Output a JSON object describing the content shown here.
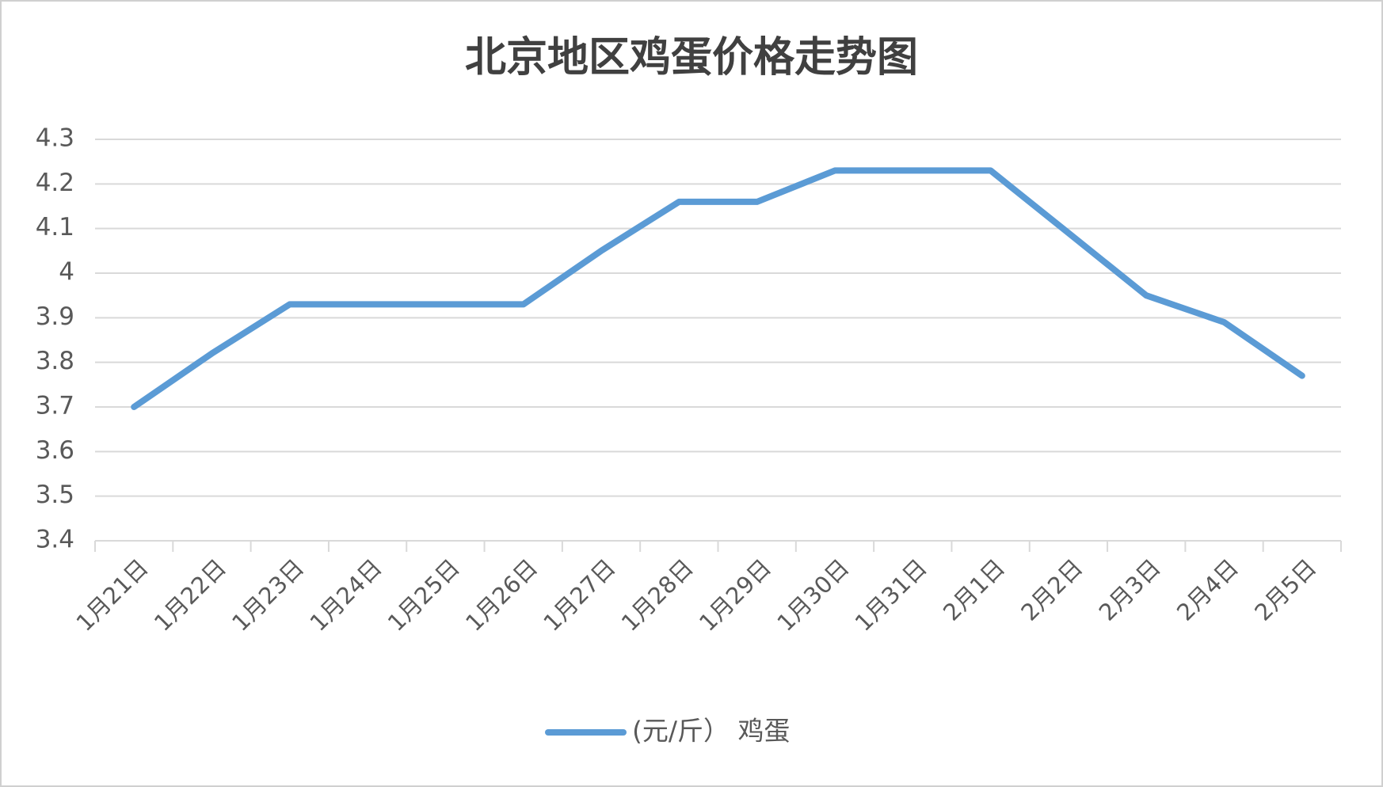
{
  "chart_data": {
    "type": "line",
    "title": "北京地区鸡蛋价格走势图",
    "categories": [
      "1月21日",
      "1月22日",
      "1月23日",
      "1月24日",
      "1月25日",
      "1月26日",
      "1月27日",
      "1月28日",
      "1月29日",
      "1月30日",
      "1月31日",
      "2月1日",
      "2月2日",
      "2月3日",
      "2月4日",
      "2月5日"
    ],
    "series": [
      {
        "name": "(元/斤） 鸡蛋",
        "color": "#5b9bd5",
        "values": [
          3.7,
          3.82,
          3.93,
          3.93,
          3.93,
          3.93,
          4.05,
          4.16,
          4.16,
          4.23,
          4.23,
          4.23,
          4.09,
          3.95,
          3.89,
          3.77
        ]
      }
    ],
    "ylim": [
      3.4,
      4.3
    ],
    "yticks": [
      3.4,
      3.5,
      3.6,
      3.7,
      3.8,
      3.9,
      4,
      4.1,
      4.2,
      4.3
    ],
    "grid": true,
    "legend": "bottom"
  }
}
